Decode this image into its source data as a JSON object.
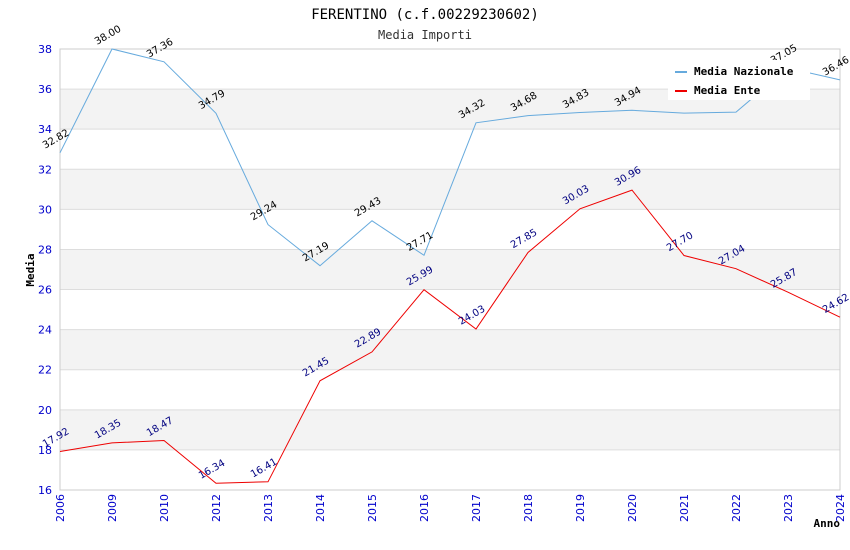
{
  "chart_data": {
    "type": "line",
    "title": "FERENTINO (c.f.00229230602)",
    "subtitle": "Media Importi",
    "xlabel": "Anno",
    "ylabel": "Media",
    "ylim": [
      16,
      38
    ],
    "yticks": [
      "16",
      "18",
      "20",
      "22",
      "24",
      "26",
      "28",
      "30",
      "32",
      "34",
      "36",
      "38"
    ],
    "categories": [
      "2006",
      "2009",
      "2010",
      "2012",
      "2013",
      "2014",
      "2015",
      "2016",
      "2017",
      "2018",
      "2019",
      "2020",
      "2021",
      "2022",
      "2023",
      "2024"
    ],
    "grid": true,
    "legend_position": "top-right",
    "series": [
      {
        "name": "Media Nazionale",
        "color": "#66aadd",
        "label_color": "#000000",
        "values": [
          32.82,
          38.0,
          37.36,
          34.79,
          29.24,
          27.19,
          29.43,
          27.71,
          34.32,
          34.68,
          34.83,
          34.94,
          34.8,
          34.85,
          37.05,
          36.46
        ],
        "labels": [
          "32.82",
          "38.00",
          "37.36",
          "34.79",
          "29.24",
          "27.19",
          "29.43",
          "27.71",
          "34.32",
          "34.68",
          "34.83",
          "34.94",
          "",
          "",
          "37.05",
          "36.46"
        ]
      },
      {
        "name": "Media Ente",
        "color": "#ee0000",
        "label_color": "#000080",
        "values": [
          17.92,
          18.35,
          18.47,
          16.34,
          16.41,
          21.45,
          22.89,
          25.99,
          24.03,
          27.85,
          30.03,
          30.96,
          27.7,
          27.04,
          25.87,
          24.62
        ],
        "labels": [
          "17.92",
          "18.35",
          "18.47",
          "16.34",
          "16.41",
          "21.45",
          "22.89",
          "25.99",
          "24.03",
          "27.85",
          "30.03",
          "30.96",
          "27.70",
          "27.04",
          "25.87",
          "24.62"
        ]
      }
    ]
  }
}
